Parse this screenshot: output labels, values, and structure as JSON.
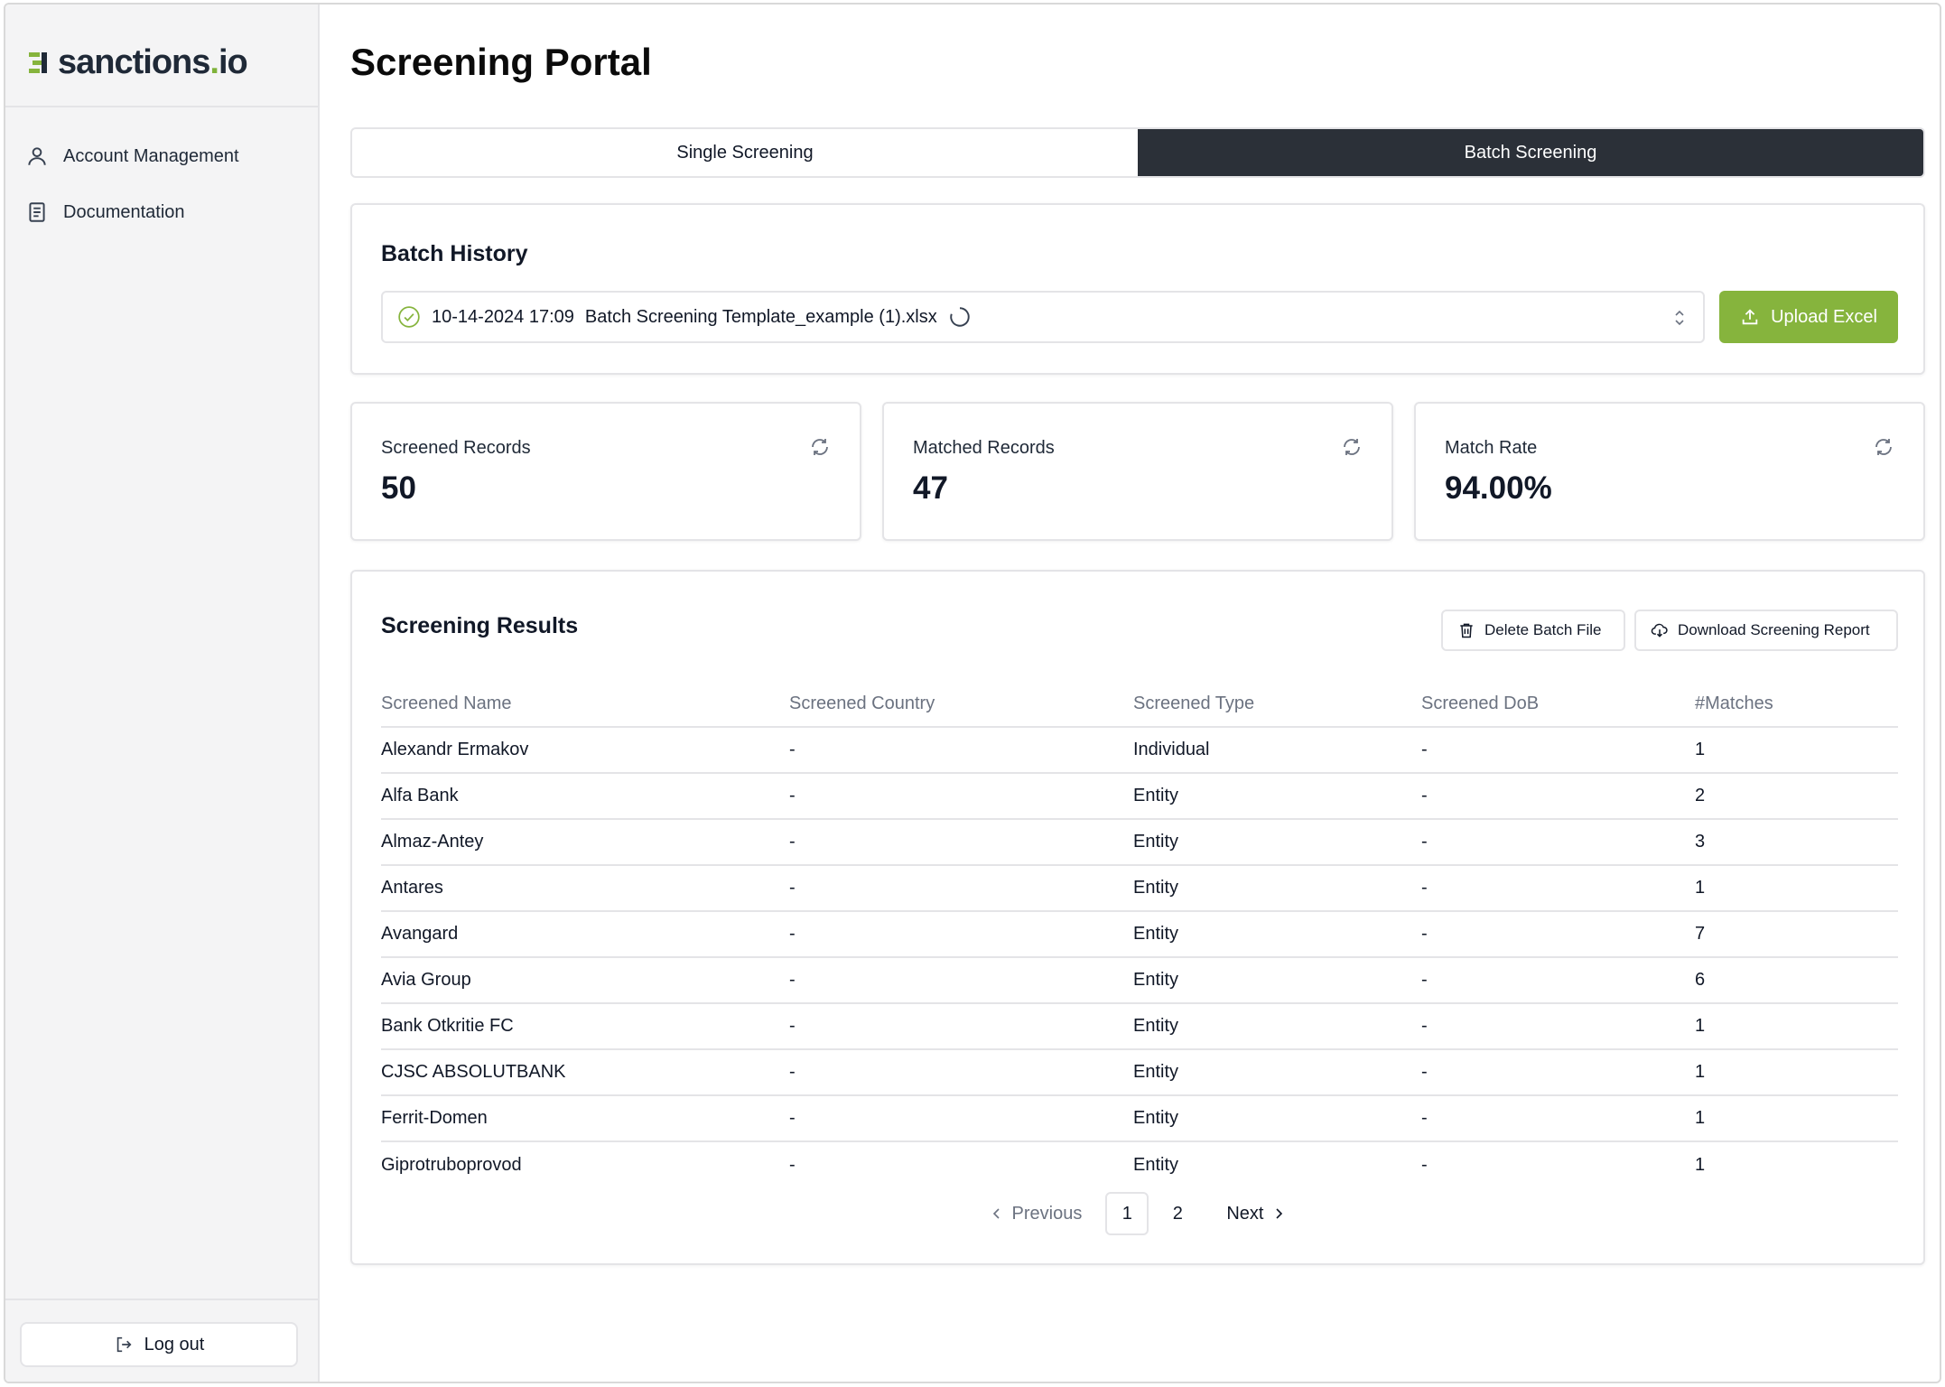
{
  "brand": {
    "name_main": "sanctions",
    "name_dot": ".",
    "name_tld": "io",
    "accent": "#86b43d"
  },
  "sidebar": {
    "items": [
      {
        "label": "Account Management",
        "icon": "user-icon"
      },
      {
        "label": "Documentation",
        "icon": "document-icon"
      }
    ],
    "logout_label": "Log out"
  },
  "page": {
    "title": "Screening Portal"
  },
  "tabs": [
    {
      "label": "Single Screening",
      "active": false
    },
    {
      "label": "Batch Screening",
      "active": true
    }
  ],
  "batch_history": {
    "title": "Batch History",
    "selected": {
      "date": "10-14-2024 17:09",
      "file": "Batch Screening Template_example (1).xlsx"
    },
    "upload_label": "Upload Excel"
  },
  "stats": [
    {
      "label": "Screened Records",
      "value": "50"
    },
    {
      "label": "Matched Records",
      "value": "47"
    },
    {
      "label": "Match Rate",
      "value": "94.00%"
    }
  ],
  "results": {
    "title": "Screening Results",
    "delete_label": "Delete Batch File",
    "download_label": "Download Screening Report",
    "columns": [
      "Screened Name",
      "Screened Country",
      "Screened Type",
      "Screened DoB",
      "#Matches"
    ],
    "rows": [
      [
        "Alexandr Ermakov",
        "-",
        "Individual",
        "-",
        "1"
      ],
      [
        "Alfa Bank",
        "-",
        "Entity",
        "-",
        "2"
      ],
      [
        "Almaz-Antey",
        "-",
        "Entity",
        "-",
        "3"
      ],
      [
        "Antares",
        "-",
        "Entity",
        "-",
        "1"
      ],
      [
        "Avangard",
        "-",
        "Entity",
        "-",
        "7"
      ],
      [
        "Avia Group",
        "-",
        "Entity",
        "-",
        "6"
      ],
      [
        "Bank Otkritie FC",
        "-",
        "Entity",
        "-",
        "1"
      ],
      [
        "CJSC ABSOLUTBANK",
        "-",
        "Entity",
        "-",
        "1"
      ],
      [
        "Ferrit-Domen",
        "-",
        "Entity",
        "-",
        "1"
      ],
      [
        "Giprotruboprovod",
        "-",
        "Entity",
        "-",
        "1"
      ]
    ]
  },
  "pagination": {
    "previous_label": "Previous",
    "next_label": "Next",
    "pages": [
      "1",
      "2"
    ],
    "current": "1"
  }
}
